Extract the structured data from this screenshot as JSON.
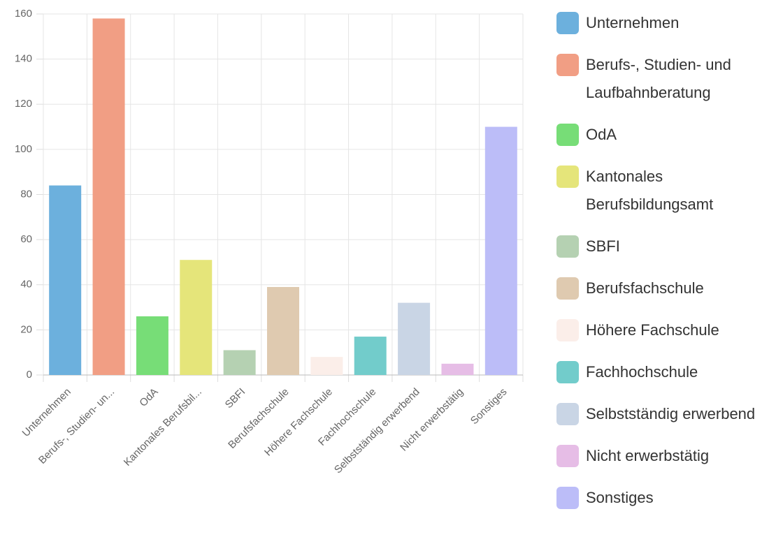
{
  "chart_data": {
    "type": "bar",
    "categories": [
      "Unternehmen",
      "Berufs-, Studien- un...",
      "OdA",
      "Kantonales Berufsbil...",
      "SBFI",
      "Berufsfachschule",
      "Höhere Fachschule",
      "Fachhochschule",
      "Selbstständig erwerbend",
      "Nicht erwerbstätig",
      "Sonstiges"
    ],
    "legend": [
      "Unternehmen",
      "Berufs-, Studien- und Laufbahnberatung",
      "OdA",
      "Kantonales Berufsbildungsamt",
      "SBFI",
      "Berufsfachschule",
      "Höhere Fachschule",
      "Fachhochschule",
      "Selbstständig erwerbend",
      "Nicht erwerbstätig",
      "Sonstiges"
    ],
    "values": [
      84,
      158,
      26,
      51,
      11,
      39,
      8,
      17,
      32,
      5,
      110
    ],
    "colors": [
      "#6cb0dd",
      "#f19e84",
      "#77dd77",
      "#e5e57a",
      "#b5d1b2",
      "#dfcab0",
      "#fbeee9",
      "#72cccb",
      "#c9d5e5",
      "#e6bde6",
      "#bcbdf8"
    ],
    "ylim": [
      0,
      160
    ],
    "yticks": [
      0,
      20,
      40,
      60,
      80,
      100,
      120,
      140,
      160
    ],
    "grid": true
  }
}
